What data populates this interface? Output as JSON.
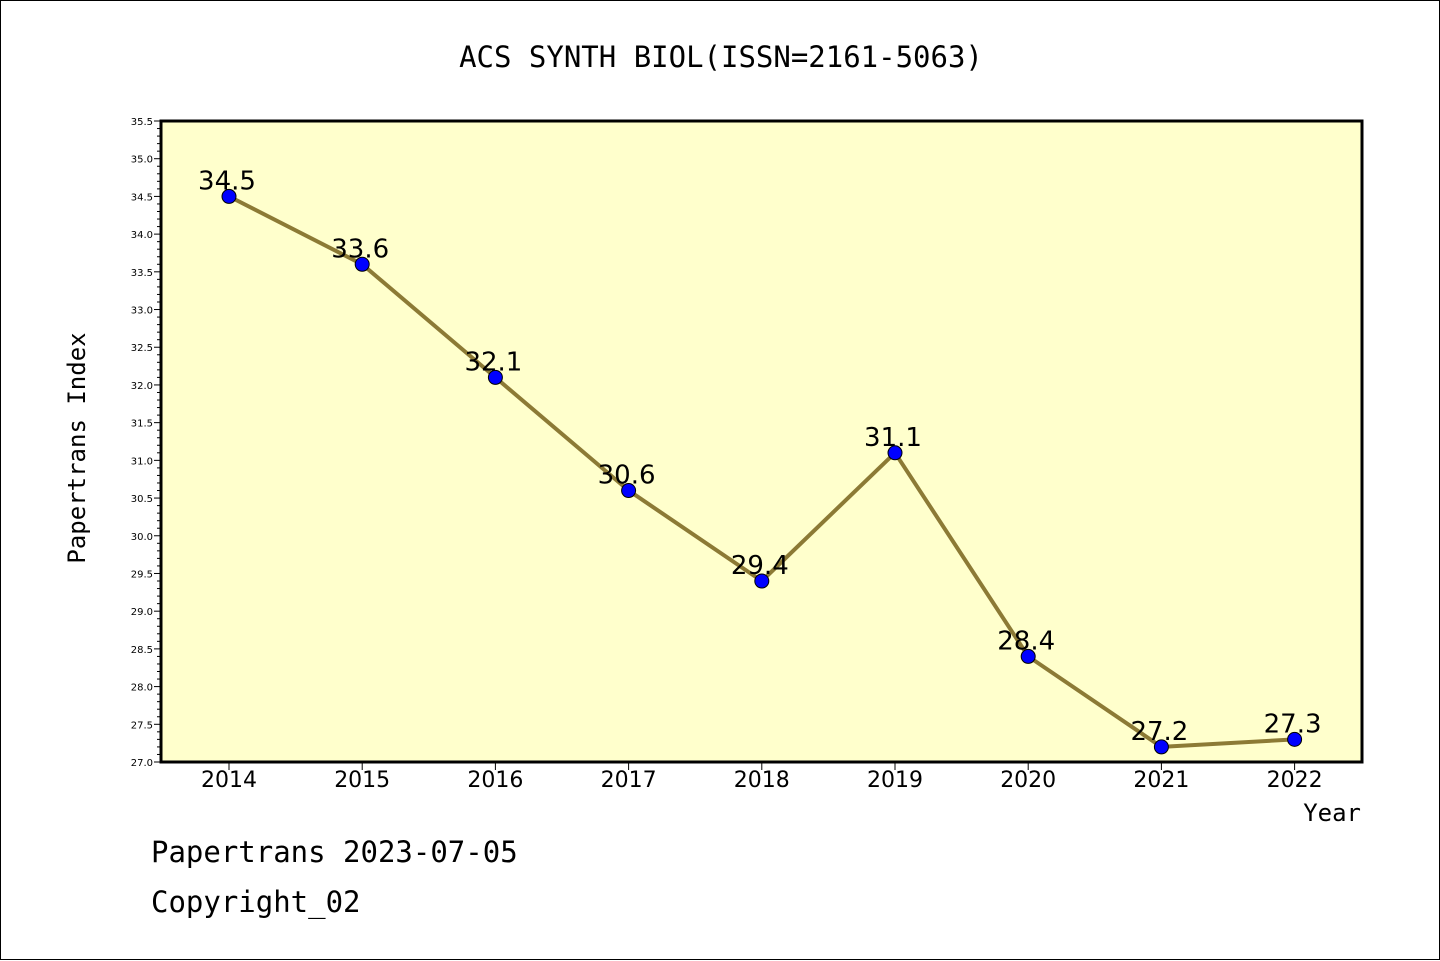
{
  "chart_data": {
    "type": "line",
    "title": "ACS SYNTH BIOL(ISSN=2161-5063)",
    "xlabel": "Year",
    "ylabel": "Papertrans Index",
    "categories": [
      "2014",
      "2015",
      "2016",
      "2017",
      "2018",
      "2019",
      "2020",
      "2021",
      "2022"
    ],
    "series": [
      {
        "values": [
          34.5,
          33.6,
          32.1,
          30.6,
          29.4,
          31.1,
          28.4,
          27.2,
          27.3
        ],
        "data_labels": [
          "34.5",
          "33.6",
          "32.1",
          "30.6",
          "29.4",
          "31.1",
          "28.4",
          "27.2",
          "27.3"
        ]
      }
    ],
    "ylim": [
      27.0,
      35.5
    ],
    "yticks": [
      "27.0",
      "27.5",
      "28.0",
      "28.5",
      "29.0",
      "29.5",
      "30.0",
      "30.5",
      "31.0",
      "31.5",
      "32.0",
      "32.5",
      "33.0",
      "33.5",
      "34.0",
      "34.5",
      "35.0",
      "35.5"
    ],
    "grid": false,
    "colors": {
      "plot_background": "#ffffcc",
      "line": "#8c7a35",
      "marker": "#0000ff"
    }
  },
  "footer": {
    "line1": "Papertrans 2023-07-05",
    "line2": "Copyright_02"
  }
}
